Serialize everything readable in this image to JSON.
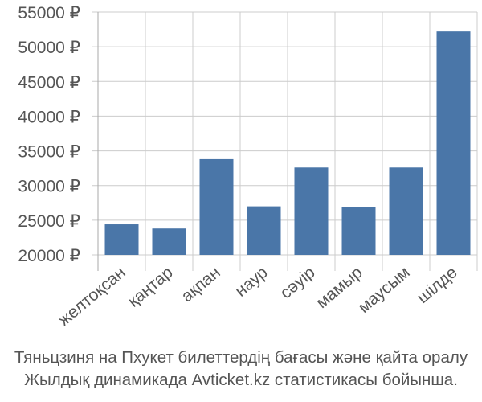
{
  "chart_data": {
    "type": "bar",
    "categories": [
      "желтоқсан",
      "қаңтар",
      "ақпан",
      "наур",
      "сәуір",
      "мамыр",
      "маусым",
      "шілде"
    ],
    "values": [
      24400,
      23800,
      33800,
      27000,
      32600,
      26900,
      32600,
      52200
    ],
    "ylim": [
      20000,
      55000
    ],
    "yticks": [
      20000,
      25000,
      30000,
      35000,
      40000,
      45000,
      50000,
      55000
    ],
    "ytick_labels": [
      "20000 ₽",
      "25000 ₽",
      "30000 ₽",
      "35000 ₽",
      "40000 ₽",
      "45000 ₽",
      "50000 ₽",
      "55000 ₽"
    ],
    "bar_color": "#4a76a8",
    "grid": true,
    "grid_color": "#cccccc",
    "legend": "none"
  },
  "caption": {
    "line1": "Тяньцзиня на Пхукет билеттердің бағасы және қайта оралу",
    "line2": "Жылдық динамикада Avticket.kz статистикасы бойынша."
  }
}
